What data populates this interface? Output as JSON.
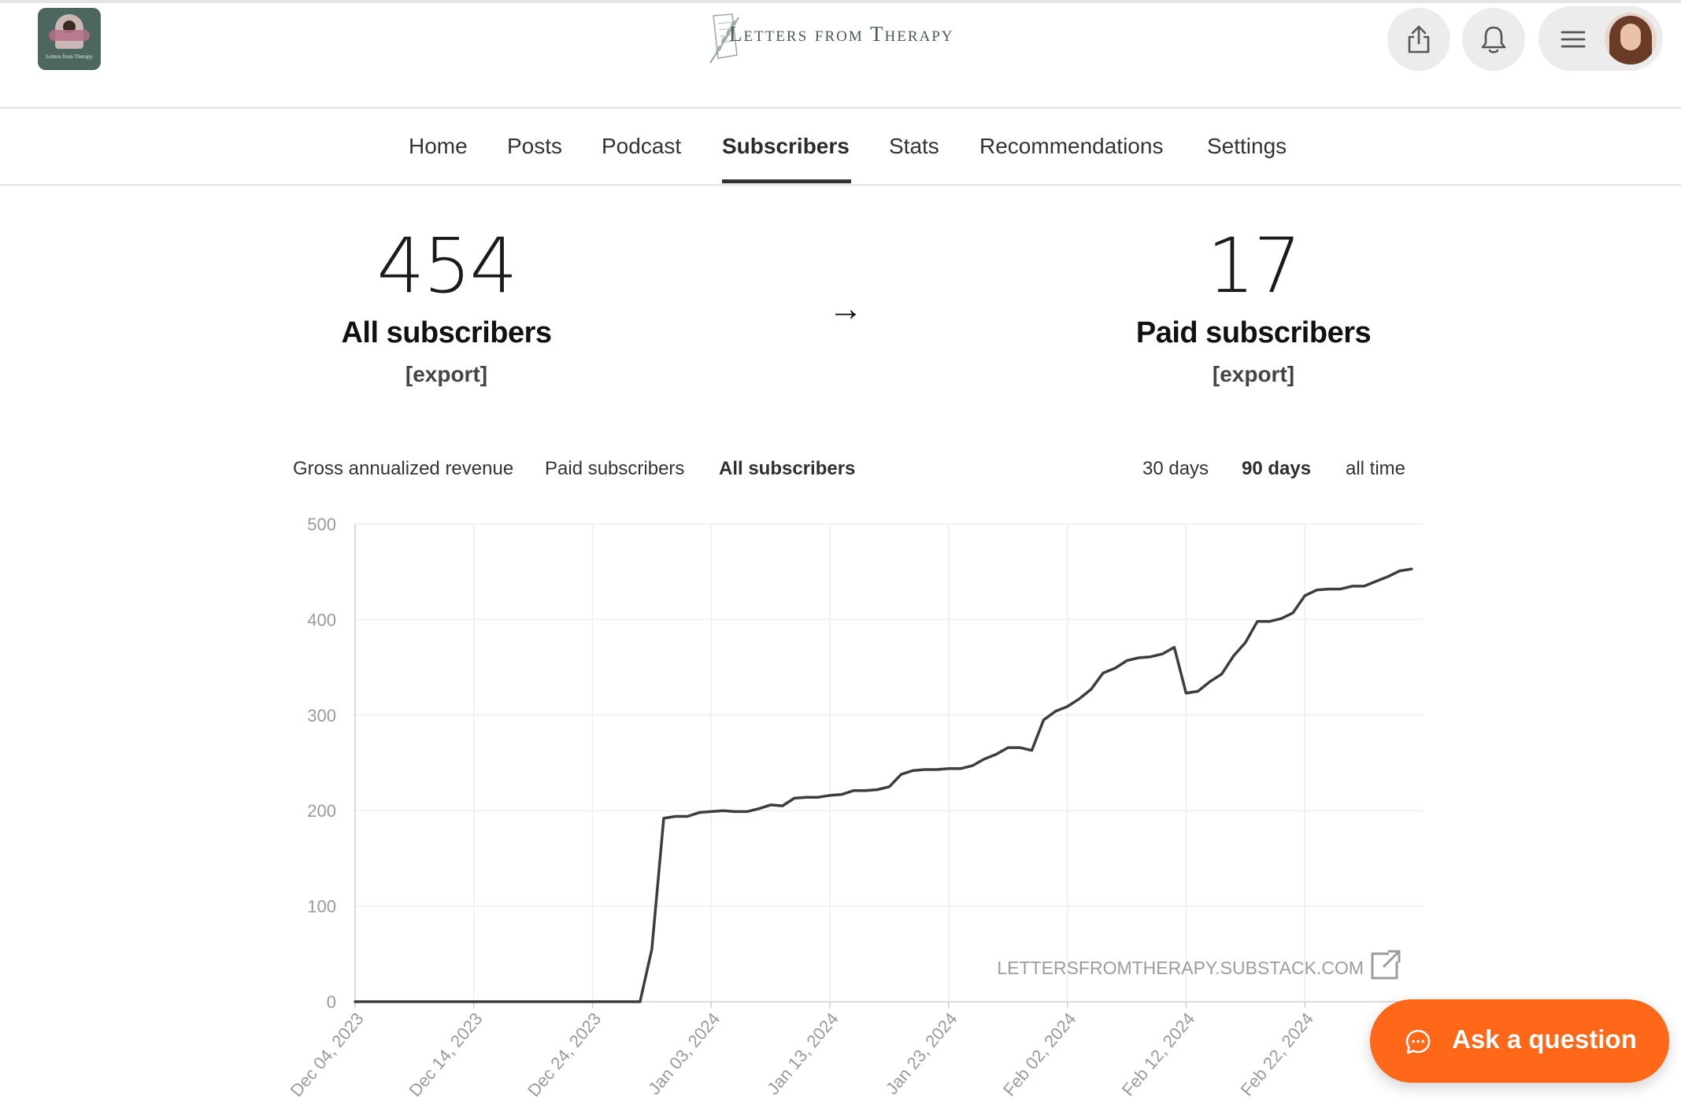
{
  "header": {
    "publication_logo_text": "Letters from Therapy",
    "site_title": "Letters from Therapy",
    "share_icon": "share-icon",
    "notifications_icon": "bell-icon",
    "menu_icon": "hamburger-icon"
  },
  "nav": {
    "items": [
      {
        "label": "Home",
        "active": false
      },
      {
        "label": "Posts",
        "active": false
      },
      {
        "label": "Podcast",
        "active": false
      },
      {
        "label": "Subscribers",
        "active": true
      },
      {
        "label": "Stats",
        "active": false
      },
      {
        "label": "Recommendations",
        "active": false
      },
      {
        "label": "Settings",
        "active": false
      }
    ]
  },
  "stats": {
    "all_subscribers": {
      "value": "454",
      "label": "All subscribers",
      "export": "[export]"
    },
    "arrow": "→",
    "paid_subscribers": {
      "value": "17",
      "label": "Paid subscribers",
      "export": "[export]"
    }
  },
  "chart_tabs": {
    "metrics": [
      {
        "label": "Gross annualized revenue",
        "active": false
      },
      {
        "label": "Paid subscribers",
        "active": false
      },
      {
        "label": "All subscribers",
        "active": true
      }
    ],
    "ranges": [
      {
        "label": "30 days",
        "active": false
      },
      {
        "label": "90 days",
        "active": true
      },
      {
        "label": "all time",
        "active": false
      }
    ]
  },
  "watermark": "LETTERSFROMTHERAPY.SUBSTACK.COM",
  "ask_button": {
    "label": "Ask a question"
  },
  "colors": {
    "accent": "#ff6719",
    "line": "#3d3d3d",
    "grid": "#efefef",
    "axis_text": "#9a9a9a"
  },
  "chart_data": {
    "type": "line",
    "title": "",
    "xlabel": "",
    "ylabel": "",
    "ylim": [
      0,
      500
    ],
    "yticks": [
      0,
      100,
      200,
      300,
      400,
      500
    ],
    "grid": true,
    "x_tick_labels": [
      "Dec 04, 2023",
      "Dec 14, 2023",
      "Dec 24, 2023",
      "Jan 03, 2024",
      "Jan 13, 2024",
      "Jan 23, 2024",
      "Feb 02, 2024",
      "Feb 12, 2024",
      "Feb 22, 2024"
    ],
    "x_range": [
      "2023-12-04",
      "2024-03-03"
    ],
    "series": [
      {
        "name": "",
        "points": [
          [
            "2023-12-04",
            0
          ],
          [
            "2023-12-10",
            0
          ],
          [
            "2023-12-16",
            0
          ],
          [
            "2023-12-22",
            0
          ],
          [
            "2023-12-28",
            0
          ],
          [
            "2023-12-29",
            55
          ],
          [
            "2023-12-30",
            192
          ],
          [
            "2023-12-31",
            194
          ],
          [
            "2024-01-01",
            194
          ],
          [
            "2024-01-02",
            198
          ],
          [
            "2024-01-03",
            199
          ],
          [
            "2024-01-04",
            200
          ],
          [
            "2024-01-05",
            199
          ],
          [
            "2024-01-06",
            199
          ],
          [
            "2024-01-07",
            202
          ],
          [
            "2024-01-08",
            206
          ],
          [
            "2024-01-09",
            205
          ],
          [
            "2024-01-10",
            213
          ],
          [
            "2024-01-11",
            214
          ],
          [
            "2024-01-12",
            214
          ],
          [
            "2024-01-13",
            216
          ],
          [
            "2024-01-14",
            217
          ],
          [
            "2024-01-15",
            221
          ],
          [
            "2024-01-16",
            221
          ],
          [
            "2024-01-17",
            222
          ],
          [
            "2024-01-18",
            225
          ],
          [
            "2024-01-19",
            238
          ],
          [
            "2024-01-20",
            242
          ],
          [
            "2024-01-21",
            243
          ],
          [
            "2024-01-22",
            243
          ],
          [
            "2024-01-23",
            244
          ],
          [
            "2024-01-24",
            244
          ],
          [
            "2024-01-25",
            247
          ],
          [
            "2024-01-26",
            254
          ],
          [
            "2024-01-27",
            259
          ],
          [
            "2024-01-28",
            266
          ],
          [
            "2024-01-29",
            266
          ],
          [
            "2024-01-30",
            263
          ],
          [
            "2024-01-31",
            295
          ],
          [
            "2024-02-01",
            304
          ],
          [
            "2024-02-02",
            309
          ],
          [
            "2024-02-03",
            317
          ],
          [
            "2024-02-04",
            327
          ],
          [
            "2024-02-05",
            344
          ],
          [
            "2024-02-06",
            349
          ],
          [
            "2024-02-07",
            357
          ],
          [
            "2024-02-08",
            360
          ],
          [
            "2024-02-09",
            361
          ],
          [
            "2024-02-10",
            364
          ],
          [
            "2024-02-11",
            371
          ],
          [
            "2024-02-12",
            323
          ],
          [
            "2024-02-13",
            325
          ],
          [
            "2024-02-14",
            335
          ],
          [
            "2024-02-15",
            343
          ],
          [
            "2024-02-16",
            362
          ],
          [
            "2024-02-17",
            376
          ],
          [
            "2024-02-18",
            398
          ],
          [
            "2024-02-19",
            398
          ],
          [
            "2024-02-20",
            401
          ],
          [
            "2024-02-21",
            407
          ],
          [
            "2024-02-22",
            425
          ],
          [
            "2024-02-23",
            431
          ],
          [
            "2024-02-24",
            432
          ],
          [
            "2024-02-25",
            432
          ],
          [
            "2024-02-26",
            435
          ],
          [
            "2024-02-27",
            435
          ],
          [
            "2024-02-28",
            440
          ],
          [
            "2024-02-29",
            445
          ],
          [
            "2024-03-01",
            451
          ],
          [
            "2024-03-02",
            453
          ]
        ]
      }
    ]
  }
}
